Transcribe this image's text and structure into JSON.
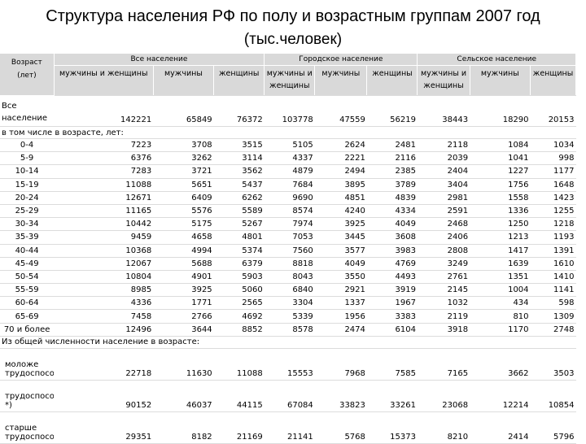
{
  "page": {
    "title": "Структура населения РФ по полу и возрастным группам 2007 год",
    "subtitle": "(тыс.человек)"
  },
  "table": {
    "row_header": "Возраст (лет)",
    "groups": [
      "Все население",
      "Городское население",
      "Сельское население"
    ],
    "subcolumns": [
      "мужчины и женщины",
      "мужчины",
      "женщины",
      "мужчины и женщины",
      "мужчины",
      "женщины",
      "мужчины и женщины",
      "мужчины",
      "женщины"
    ],
    "total": {
      "label": "Все население",
      "values": [
        "142221",
        "65849",
        "76372",
        "103778",
        "47559",
        "56219",
        "38443",
        "18290",
        "20153"
      ]
    },
    "age_note": "в том числе в возрасте, лет:",
    "age_rows": [
      {
        "label": "0-4",
        "values": [
          "7223",
          "3708",
          "3515",
          "5105",
          "2624",
          "2481",
          "2118",
          "1084",
          "1034"
        ]
      },
      {
        "label": "5-9",
        "values": [
          "6376",
          "3262",
          "3114",
          "4337",
          "2221",
          "2116",
          "2039",
          "1041",
          "998"
        ]
      },
      {
        "label": "10-14",
        "values": [
          "7283",
          "3721",
          "3562",
          "4879",
          "2494",
          "2385",
          "2404",
          "1227",
          "1177"
        ]
      },
      {
        "label": "15-19",
        "values": [
          "11088",
          "5651",
          "5437",
          "7684",
          "3895",
          "3789",
          "3404",
          "1756",
          "1648"
        ]
      },
      {
        "label": "20-24",
        "values": [
          "12671",
          "6409",
          "6262",
          "9690",
          "4851",
          "4839",
          "2981",
          "1558",
          "1423"
        ]
      },
      {
        "label": "25-29",
        "values": [
          "11165",
          "5576",
          "5589",
          "8574",
          "4240",
          "4334",
          "2591",
          "1336",
          "1255"
        ]
      },
      {
        "label": "30-34",
        "values": [
          "10442",
          "5175",
          "5267",
          "7974",
          "3925",
          "4049",
          "2468",
          "1250",
          "1218"
        ]
      },
      {
        "label": "35-39",
        "values": [
          "9459",
          "4658",
          "4801",
          "7053",
          "3445",
          "3608",
          "2406",
          "1213",
          "1193"
        ]
      },
      {
        "label": "40-44",
        "values": [
          "10368",
          "4994",
          "5374",
          "7560",
          "3577",
          "3983",
          "2808",
          "1417",
          "1391"
        ]
      },
      {
        "label": "45-49",
        "values": [
          "12067",
          "5688",
          "6379",
          "8818",
          "4049",
          "4769",
          "3249",
          "1639",
          "1610"
        ]
      },
      {
        "label": "50-54",
        "values": [
          "10804",
          "4901",
          "5903",
          "8043",
          "3550",
          "4493",
          "2761",
          "1351",
          "1410"
        ]
      },
      {
        "label": "55-59",
        "values": [
          "8985",
          "3925",
          "5060",
          "6840",
          "2921",
          "3919",
          "2145",
          "1004",
          "1141"
        ]
      },
      {
        "label": "60-64",
        "values": [
          "4336",
          "1771",
          "2565",
          "3304",
          "1337",
          "1967",
          "1032",
          "434",
          "598"
        ]
      },
      {
        "label": "65-69",
        "values": [
          "7458",
          "2766",
          "4692",
          "5339",
          "1956",
          "3383",
          "2119",
          "810",
          "1309"
        ]
      },
      {
        "label": "70 и более",
        "values": [
          "12496",
          "3644",
          "8852",
          "8578",
          "2474",
          "6104",
          "3918",
          "1170",
          "2748"
        ]
      }
    ],
    "work_note": "Из общей численности население в возрасте:",
    "work_rows": [
      {
        "label": "моложе трудоспособного",
        "values": [
          "22718",
          "11630",
          "11088",
          "15553",
          "7968",
          "7585",
          "7165",
          "3662",
          "3503"
        ]
      },
      {
        "label": "трудоспособном *)",
        "values": [
          "90152",
          "46037",
          "44115",
          "67084",
          "33823",
          "33261",
          "23068",
          "12214",
          "10854"
        ]
      },
      {
        "label": "старше трудоспособного",
        "values": [
          "29351",
          "8182",
          "21169",
          "21141",
          "5768",
          "15373",
          "8210",
          "2414",
          "5796"
        ]
      }
    ]
  }
}
